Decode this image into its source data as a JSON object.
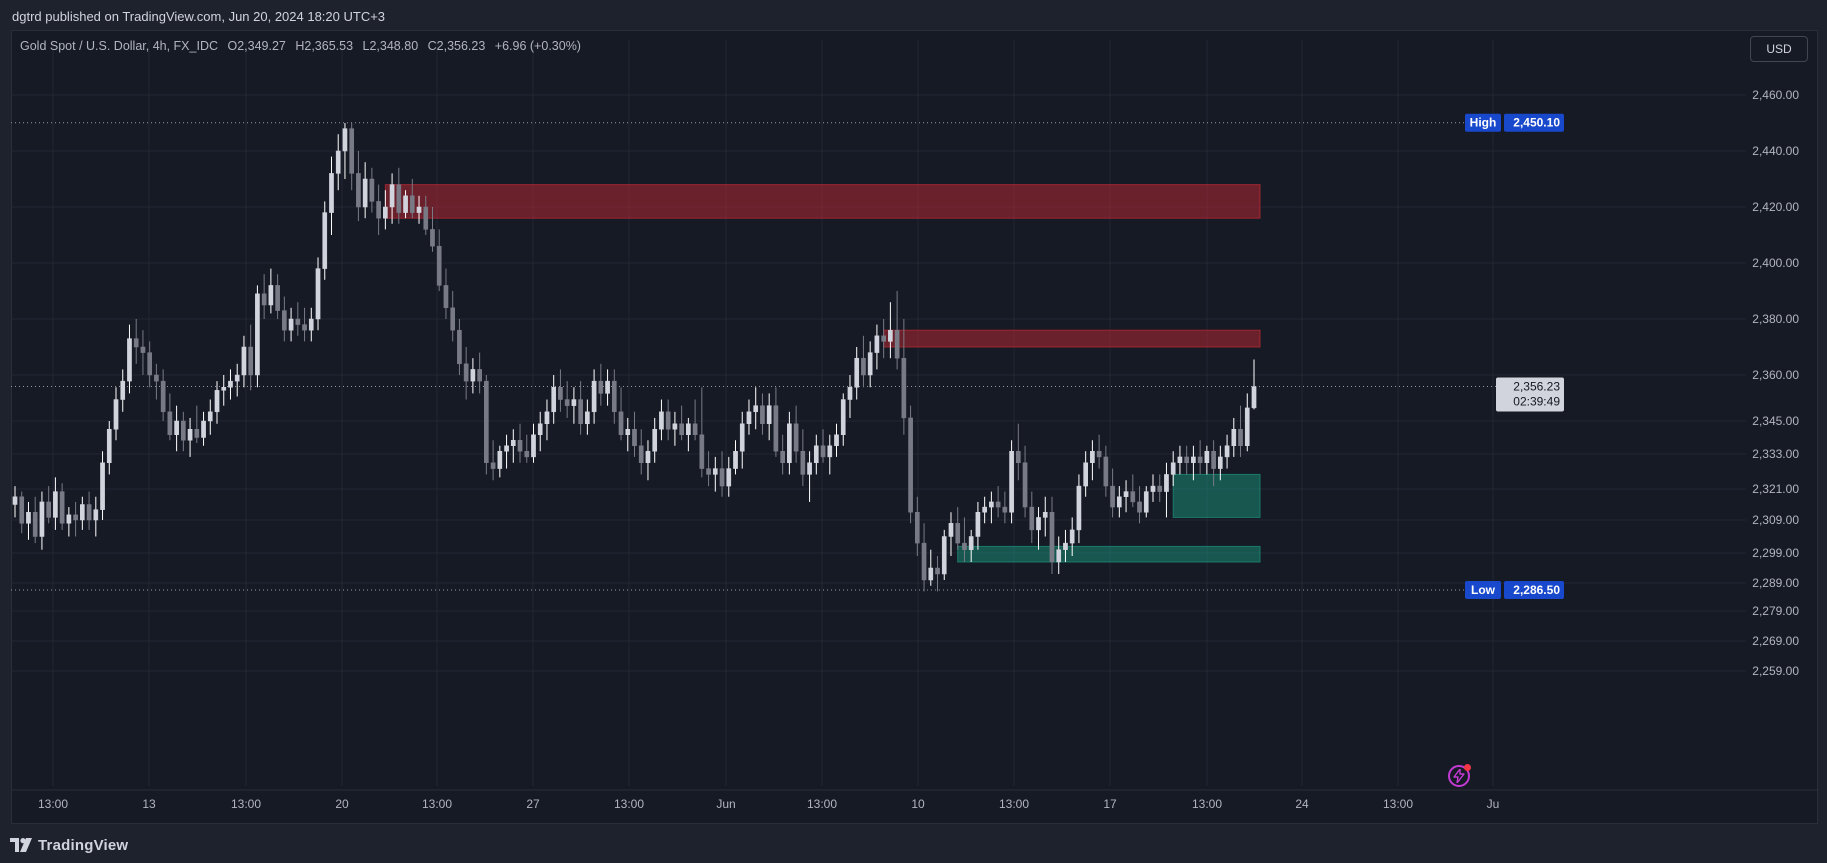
{
  "header": {
    "published": "dgtrd published on TradingView.com, Jun 20, 2024 18:20 UTC+3"
  },
  "legend": {
    "symbol": "Gold Spot / U.S. Dollar, 4h, FX_IDC",
    "open": "O2,349.27",
    "high": "H2,365.53",
    "low": "L2,348.80",
    "close": "C2,356.23",
    "change": "+6.96 (+0.30%)"
  },
  "currency_button": "USD",
  "footer": {
    "brand": "TradingView"
  },
  "colors": {
    "background": "#161a25",
    "candle_up": "#ffffff",
    "candle_down": "#787b86",
    "supply_zone": "#b22833",
    "demand_zone": "#1b8a74",
    "high_low_tag": "#1848cc",
    "alert_accent": "#c33ad4"
  },
  "chart_data": {
    "type": "candlestick",
    "symbol": "XAUUSD",
    "timeframe": "4h",
    "ylim": [
      2259,
      2470
    ],
    "y_ticks": [
      2460,
      2440,
      2420,
      2400,
      2380,
      2360,
      2345,
      2333,
      2321,
      2309,
      2299,
      2289,
      2279,
      2269,
      2259
    ],
    "y_tick_labels": [
      "2,460.00",
      "2,440.00",
      "2,420.00",
      "2,400.00",
      "2,380.00",
      "2,360.00",
      "2,345.00",
      "2,333.00",
      "2,321.00",
      "2,309.00",
      "2,299.00",
      "2,289.00",
      "2,279.00",
      "2,269.00",
      "2,259.00"
    ],
    "x_ticks": [
      "13:00",
      "13",
      "13:00",
      "20",
      "13:00",
      "27",
      "13:00",
      "Jun",
      "13:00",
      "10",
      "13:00",
      "17",
      "13:00",
      "24",
      "13:00",
      "Ju"
    ],
    "high_marker": {
      "label": "High",
      "value": 2450.1,
      "text": "2,450.10"
    },
    "low_marker": {
      "label": "Low",
      "value": 2286.5,
      "text": "2,286.50"
    },
    "last_price": {
      "value": 2356.23,
      "text": "2,356.23",
      "countdown": "02:39:49"
    },
    "zones": [
      {
        "kind": "supply",
        "from": 2416,
        "to": 2428
      },
      {
        "kind": "supply",
        "from": 2370,
        "to": 2376
      },
      {
        "kind": "demand",
        "from": 2310,
        "to": 2326
      },
      {
        "kind": "demand",
        "from": 2296,
        "to": 2301
      }
    ],
    "candles": [
      [
        2315,
        2322,
        2310,
        2318
      ],
      [
        2318,
        2320,
        2305,
        2308
      ],
      [
        2308,
        2316,
        2303,
        2312
      ],
      [
        2312,
        2318,
        2302,
        2304
      ],
      [
        2304,
        2320,
        2300,
        2316
      ],
      [
        2316,
        2322,
        2308,
        2310
      ],
      [
        2310,
        2325,
        2306,
        2320
      ],
      [
        2320,
        2323,
        2306,
        2308
      ],
      [
        2308,
        2314,
        2304,
        2311
      ],
      [
        2311,
        2316,
        2304,
        2309
      ],
      [
        2309,
        2318,
        2306,
        2315
      ],
      [
        2315,
        2320,
        2306,
        2309
      ],
      [
        2309,
        2318,
        2304,
        2313
      ],
      [
        2313,
        2334,
        2309,
        2330
      ],
      [
        2330,
        2345,
        2326,
        2342
      ],
      [
        2342,
        2356,
        2338,
        2352
      ],
      [
        2352,
        2362,
        2348,
        2358
      ],
      [
        2358,
        2378,
        2354,
        2373
      ],
      [
        2373,
        2380,
        2364,
        2370
      ],
      [
        2370,
        2376,
        2360,
        2368
      ],
      [
        2368,
        2372,
        2356,
        2360
      ],
      [
        2360,
        2364,
        2352,
        2358
      ],
      [
        2358,
        2362,
        2345,
        2348
      ],
      [
        2348,
        2354,
        2338,
        2340
      ],
      [
        2340,
        2350,
        2334,
        2345
      ],
      [
        2345,
        2348,
        2334,
        2338
      ],
      [
        2338,
        2346,
        2332,
        2342
      ],
      [
        2342,
        2350,
        2337,
        2339
      ],
      [
        2339,
        2348,
        2336,
        2345
      ],
      [
        2345,
        2352,
        2340,
        2348
      ],
      [
        2348,
        2358,
        2344,
        2355
      ],
      [
        2355,
        2360,
        2350,
        2356
      ],
      [
        2356,
        2362,
        2352,
        2358
      ],
      [
        2358,
        2364,
        2353,
        2360
      ],
      [
        2360,
        2374,
        2356,
        2370
      ],
      [
        2370,
        2378,
        2355,
        2360
      ],
      [
        2360,
        2392,
        2356,
        2389
      ],
      [
        2389,
        2396,
        2380,
        2385
      ],
      [
        2385,
        2398,
        2382,
        2392
      ],
      [
        2392,
        2396,
        2380,
        2383
      ],
      [
        2383,
        2388,
        2372,
        2376
      ],
      [
        2376,
        2384,
        2372,
        2380
      ],
      [
        2380,
        2386,
        2374,
        2378
      ],
      [
        2378,
        2384,
        2372,
        2376
      ],
      [
        2376,
        2384,
        2372,
        2380
      ],
      [
        2380,
        2402,
        2376,
        2398
      ],
      [
        2398,
        2422,
        2394,
        2418
      ],
      [
        2418,
        2438,
        2410,
        2432
      ],
      [
        2432,
        2446,
        2426,
        2440
      ],
      [
        2440,
        2450,
        2430,
        2448
      ],
      [
        2448,
        2450,
        2426,
        2432
      ],
      [
        2432,
        2440,
        2415,
        2420
      ],
      [
        2420,
        2436,
        2416,
        2430
      ],
      [
        2430,
        2434,
        2418,
        2422
      ],
      [
        2422,
        2428,
        2410,
        2416
      ],
      [
        2416,
        2426,
        2412,
        2420
      ],
      [
        2420,
        2432,
        2414,
        2428
      ],
      [
        2428,
        2434,
        2414,
        2418
      ],
      [
        2418,
        2426,
        2416,
        2424
      ],
      [
        2424,
        2430,
        2416,
        2418
      ],
      [
        2418,
        2424,
        2414,
        2420
      ],
      [
        2420,
        2424,
        2410,
        2412
      ],
      [
        2412,
        2420,
        2404,
        2406
      ],
      [
        2406,
        2412,
        2390,
        2392
      ],
      [
        2392,
        2398,
        2380,
        2384
      ],
      [
        2384,
        2390,
        2372,
        2376
      ],
      [
        2376,
        2380,
        2360,
        2364
      ],
      [
        2364,
        2370,
        2352,
        2358
      ],
      [
        2358,
        2366,
        2354,
        2362
      ],
      [
        2362,
        2368,
        2354,
        2358
      ],
      [
        2358,
        2360,
        2326,
        2330
      ],
      [
        2330,
        2338,
        2324,
        2328
      ],
      [
        2328,
        2336,
        2325,
        2334
      ],
      [
        2334,
        2340,
        2328,
        2336
      ],
      [
        2336,
        2342,
        2330,
        2338
      ],
      [
        2338,
        2344,
        2330,
        2334
      ],
      [
        2334,
        2340,
        2330,
        2332
      ],
      [
        2332,
        2344,
        2330,
        2340
      ],
      [
        2340,
        2348,
        2334,
        2344
      ],
      [
        2344,
        2352,
        2338,
        2348
      ],
      [
        2348,
        2360,
        2344,
        2356
      ],
      [
        2356,
        2362,
        2348,
        2352
      ],
      [
        2352,
        2358,
        2346,
        2350
      ],
      [
        2350,
        2356,
        2344,
        2352
      ],
      [
        2352,
        2358,
        2340,
        2344
      ],
      [
        2344,
        2352,
        2340,
        2348
      ],
      [
        2348,
        2362,
        2344,
        2358
      ],
      [
        2358,
        2364,
        2350,
        2354
      ],
      [
        2354,
        2362,
        2350,
        2358
      ],
      [
        2358,
        2362,
        2344,
        2348
      ],
      [
        2348,
        2356,
        2338,
        2340
      ],
      [
        2340,
        2346,
        2334,
        2342
      ],
      [
        2342,
        2348,
        2332,
        2336
      ],
      [
        2336,
        2342,
        2326,
        2330
      ],
      [
        2330,
        2338,
        2324,
        2334
      ],
      [
        2334,
        2346,
        2330,
        2342
      ],
      [
        2342,
        2352,
        2338,
        2348
      ],
      [
        2348,
        2352,
        2338,
        2342
      ],
      [
        2342,
        2348,
        2336,
        2344
      ],
      [
        2344,
        2350,
        2338,
        2340
      ],
      [
        2340,
        2346,
        2334,
        2344
      ],
      [
        2344,
        2352,
        2338,
        2340
      ],
      [
        2340,
        2356,
        2325,
        2328
      ],
      [
        2328,
        2334,
        2322,
        2326
      ],
      [
        2326,
        2332,
        2320,
        2328
      ],
      [
        2328,
        2334,
        2318,
        2322
      ],
      [
        2322,
        2332,
        2318,
        2328
      ],
      [
        2328,
        2338,
        2326,
        2334
      ],
      [
        2334,
        2348,
        2328,
        2344
      ],
      [
        2344,
        2352,
        2340,
        2348
      ],
      [
        2348,
        2356,
        2342,
        2350
      ],
      [
        2350,
        2354,
        2340,
        2344
      ],
      [
        2344,
        2354,
        2338,
        2350
      ],
      [
        2350,
        2356,
        2332,
        2334
      ],
      [
        2334,
        2340,
        2326,
        2330
      ],
      [
        2330,
        2348,
        2326,
        2344
      ],
      [
        2344,
        2350,
        2330,
        2334
      ],
      [
        2334,
        2342,
        2322,
        2326
      ],
      [
        2326,
        2334,
        2316,
        2330
      ],
      [
        2330,
        2340,
        2326,
        2336
      ],
      [
        2336,
        2342,
        2330,
        2332
      ],
      [
        2332,
        2340,
        2326,
        2336
      ],
      [
        2336,
        2344,
        2332,
        2340
      ],
      [
        2340,
        2354,
        2336,
        2352
      ],
      [
        2352,
        2360,
        2346,
        2356
      ],
      [
        2356,
        2370,
        2352,
        2366
      ],
      [
        2366,
        2374,
        2356,
        2360
      ],
      [
        2360,
        2372,
        2356,
        2368
      ],
      [
        2368,
        2378,
        2362,
        2374
      ],
      [
        2374,
        2380,
        2366,
        2372
      ],
      [
        2372,
        2386,
        2366,
        2376
      ],
      [
        2376,
        2390,
        2362,
        2366
      ],
      [
        2366,
        2380,
        2340,
        2346
      ],
      [
        2346,
        2350,
        2308,
        2312
      ],
      [
        2312,
        2318,
        2298,
        2302
      ],
      [
        2302,
        2308,
        2286,
        2290
      ],
      [
        2290,
        2300,
        2288,
        2294
      ],
      [
        2294,
        2298,
        2286,
        2292
      ],
      [
        2292,
        2306,
        2290,
        2304
      ],
      [
        2304,
        2312,
        2298,
        2308
      ],
      [
        2308,
        2314,
        2300,
        2302
      ],
      [
        2302,
        2310,
        2296,
        2300
      ],
      [
        2300,
        2306,
        2296,
        2304
      ],
      [
        2304,
        2316,
        2300,
        2312
      ],
      [
        2312,
        2318,
        2308,
        2314
      ],
      [
        2314,
        2320,
        2308,
        2316
      ],
      [
        2316,
        2322,
        2310,
        2314
      ],
      [
        2314,
        2320,
        2308,
        2312
      ],
      [
        2312,
        2338,
        2308,
        2334
      ],
      [
        2334,
        2344,
        2324,
        2330
      ],
      [
        2330,
        2336,
        2310,
        2314
      ],
      [
        2314,
        2320,
        2302,
        2306
      ],
      [
        2306,
        2314,
        2300,
        2310
      ],
      [
        2310,
        2318,
        2304,
        2312
      ],
      [
        2312,
        2318,
        2292,
        2296
      ],
      [
        2296,
        2304,
        2292,
        2300
      ],
      [
        2300,
        2306,
        2296,
        2302
      ],
      [
        2302,
        2310,
        2298,
        2306
      ],
      [
        2306,
        2326,
        2302,
        2322
      ],
      [
        2322,
        2334,
        2318,
        2330
      ],
      [
        2330,
        2338,
        2324,
        2334
      ],
      [
        2334,
        2340,
        2328,
        2332
      ],
      [
        2332,
        2336,
        2318,
        2322
      ],
      [
        2322,
        2328,
        2310,
        2314
      ],
      [
        2314,
        2322,
        2310,
        2318
      ],
      [
        2318,
        2324,
        2312,
        2320
      ],
      [
        2320,
        2326,
        2314,
        2316
      ],
      [
        2316,
        2322,
        2308,
        2312
      ],
      [
        2312,
        2322,
        2310,
        2320
      ],
      [
        2320,
        2326,
        2316,
        2322
      ],
      [
        2322,
        2326,
        2316,
        2320
      ],
      [
        2320,
        2330,
        2310,
        2326
      ],
      [
        2326,
        2334,
        2322,
        2330
      ],
      [
        2330,
        2336,
        2326,
        2332
      ],
      [
        2332,
        2336,
        2326,
        2330
      ],
      [
        2330,
        2336,
        2324,
        2332
      ],
      [
        2332,
        2338,
        2326,
        2330
      ],
      [
        2330,
        2336,
        2326,
        2334
      ],
      [
        2334,
        2338,
        2322,
        2328
      ],
      [
        2328,
        2336,
        2324,
        2332
      ],
      [
        2332,
        2340,
        2328,
        2336
      ],
      [
        2336,
        2346,
        2332,
        2342
      ],
      [
        2342,
        2350,
        2332,
        2336
      ],
      [
        2336,
        2354,
        2334,
        2349.27
      ],
      [
        2349.27,
        2365.53,
        2348.8,
        2356.23
      ]
    ]
  }
}
